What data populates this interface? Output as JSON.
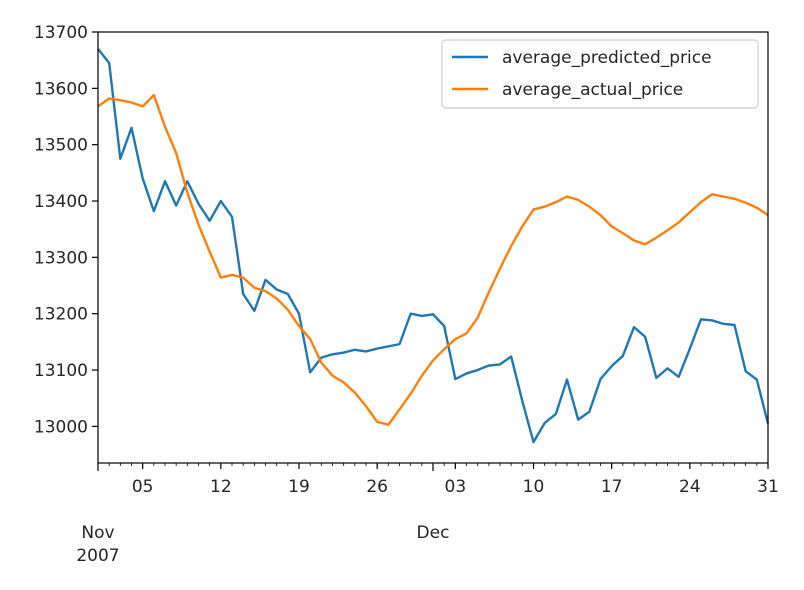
{
  "chart_data": {
    "type": "line",
    "title": "",
    "xlabel": "",
    "ylabel": "",
    "x_start": "2007-11-01",
    "x_end": "2007-12-31",
    "ylim": [
      12935,
      13700
    ],
    "grid": false,
    "legend_position": "top-right",
    "y_ticks": [
      13000,
      13100,
      13200,
      13300,
      13400,
      13500,
      13600,
      13700
    ],
    "y_tick_labels": [
      "13000",
      "13100",
      "13200",
      "13300",
      "13400",
      "13500",
      "13600",
      "13700"
    ],
    "x_ticks": [
      {
        "date": "2007-11-05",
        "label": "05"
      },
      {
        "date": "2007-11-12",
        "label": "12"
      },
      {
        "date": "2007-11-19",
        "label": "19"
      },
      {
        "date": "2007-11-26",
        "label": "26"
      },
      {
        "date": "2007-12-03",
        "label": "03"
      },
      {
        "date": "2007-12-10",
        "label": "10"
      },
      {
        "date": "2007-12-17",
        "label": "17"
      },
      {
        "date": "2007-12-24",
        "label": "24"
      },
      {
        "date": "2007-12-31",
        "label": "31"
      }
    ],
    "x_major_labels": [
      {
        "date": "2007-11-01",
        "label": "Nov",
        "sublabel": "2007"
      },
      {
        "date": "2007-12-01",
        "label": "Dec",
        "sublabel": ""
      }
    ],
    "series": [
      {
        "name": "average_predicted_price",
        "color": "#1f77b4",
        "points": [
          [
            "2007-11-01",
            13670
          ],
          [
            "2007-11-02",
            13645
          ],
          [
            "2007-11-03",
            13475
          ],
          [
            "2007-11-04",
            13530
          ],
          [
            "2007-11-05",
            13440
          ],
          [
            "2007-11-06",
            13382
          ],
          [
            "2007-11-07",
            13435
          ],
          [
            "2007-11-08",
            13392
          ],
          [
            "2007-11-09",
            13435
          ],
          [
            "2007-11-10",
            13395
          ],
          [
            "2007-11-11",
            13365
          ],
          [
            "2007-11-12",
            13400
          ],
          [
            "2007-11-13",
            13372
          ],
          [
            "2007-11-14",
            13235
          ],
          [
            "2007-11-15",
            13205
          ],
          [
            "2007-11-16",
            13260
          ],
          [
            "2007-11-17",
            13243
          ],
          [
            "2007-11-18",
            13235
          ],
          [
            "2007-11-19",
            13200
          ],
          [
            "2007-11-20",
            13096
          ],
          [
            "2007-11-21",
            13122
          ],
          [
            "2007-11-22",
            13128
          ],
          [
            "2007-11-23",
            13131
          ],
          [
            "2007-11-24",
            13136
          ],
          [
            "2007-11-25",
            13133
          ],
          [
            "2007-11-26",
            13138
          ],
          [
            "2007-11-27",
            13142
          ],
          [
            "2007-11-28",
            13146
          ],
          [
            "2007-11-29",
            13200
          ],
          [
            "2007-11-30",
            13196
          ],
          [
            "2007-12-01",
            13199
          ],
          [
            "2007-12-02",
            13178
          ],
          [
            "2007-12-03",
            13084
          ],
          [
            "2007-12-04",
            13094
          ],
          [
            "2007-12-05",
            13100
          ],
          [
            "2007-12-06",
            13108
          ],
          [
            "2007-12-07",
            13110
          ],
          [
            "2007-12-08",
            13124
          ],
          [
            "2007-12-09",
            13045
          ],
          [
            "2007-12-10",
            12972
          ],
          [
            "2007-12-11",
            13006
          ],
          [
            "2007-12-12",
            13022
          ],
          [
            "2007-12-13",
            13083
          ],
          [
            "2007-12-14",
            13012
          ],
          [
            "2007-12-15",
            13026
          ],
          [
            "2007-12-16",
            13084
          ],
          [
            "2007-12-17",
            13107
          ],
          [
            "2007-12-18",
            13125
          ],
          [
            "2007-12-19",
            13176
          ],
          [
            "2007-12-20",
            13159
          ],
          [
            "2007-12-21",
            13086
          ],
          [
            "2007-12-22",
            13103
          ],
          [
            "2007-12-23",
            13088
          ],
          [
            "2007-12-24",
            13138
          ],
          [
            "2007-12-25",
            13190
          ],
          [
            "2007-12-26",
            13188
          ],
          [
            "2007-12-27",
            13182
          ],
          [
            "2007-12-28",
            13180
          ],
          [
            "2007-12-29",
            13098
          ],
          [
            "2007-12-30",
            13083
          ],
          [
            "2007-12-31",
            13005
          ]
        ]
      },
      {
        "name": "average_actual_price",
        "color": "#ff7f0e",
        "points": [
          [
            "2007-11-01",
            13568
          ],
          [
            "2007-11-02",
            13582
          ],
          [
            "2007-11-03",
            13579
          ],
          [
            "2007-11-04",
            13575
          ],
          [
            "2007-11-05",
            13568
          ],
          [
            "2007-11-06",
            13588
          ],
          [
            "2007-11-07",
            13532
          ],
          [
            "2007-11-08",
            13485
          ],
          [
            "2007-11-09",
            13415
          ],
          [
            "2007-11-10",
            13358
          ],
          [
            "2007-11-11",
            13310
          ],
          [
            "2007-11-12",
            13264
          ],
          [
            "2007-11-13",
            13269
          ],
          [
            "2007-11-14",
            13264
          ],
          [
            "2007-11-15",
            13246
          ],
          [
            "2007-11-16",
            13240
          ],
          [
            "2007-11-17",
            13227
          ],
          [
            "2007-11-18",
            13207
          ],
          [
            "2007-11-19",
            13178
          ],
          [
            "2007-11-20",
            13155
          ],
          [
            "2007-11-21",
            13113
          ],
          [
            "2007-11-22",
            13090
          ],
          [
            "2007-11-23",
            13078
          ],
          [
            "2007-11-24",
            13060
          ],
          [
            "2007-11-25",
            13036
          ],
          [
            "2007-11-26",
            13008
          ],
          [
            "2007-11-27",
            13003
          ],
          [
            "2007-11-28",
            13030
          ],
          [
            "2007-11-29",
            13058
          ],
          [
            "2007-11-30",
            13090
          ],
          [
            "2007-12-01",
            13117
          ],
          [
            "2007-12-02",
            13137
          ],
          [
            "2007-12-03",
            13155
          ],
          [
            "2007-12-04",
            13165
          ],
          [
            "2007-12-05",
            13193
          ],
          [
            "2007-12-06",
            13238
          ],
          [
            "2007-12-07",
            13280
          ],
          [
            "2007-12-08",
            13320
          ],
          [
            "2007-12-09",
            13355
          ],
          [
            "2007-12-10",
            13385
          ],
          [
            "2007-12-11",
            13390
          ],
          [
            "2007-12-12",
            13398
          ],
          [
            "2007-12-13",
            13408
          ],
          [
            "2007-12-14",
            13402
          ],
          [
            "2007-12-15",
            13390
          ],
          [
            "2007-12-16",
            13375
          ],
          [
            "2007-12-17",
            13355
          ],
          [
            "2007-12-18",
            13343
          ],
          [
            "2007-12-19",
            13330
          ],
          [
            "2007-12-20",
            13323
          ],
          [
            "2007-12-21",
            13335
          ],
          [
            "2007-12-22",
            13348
          ],
          [
            "2007-12-23",
            13362
          ],
          [
            "2007-12-24",
            13380
          ],
          [
            "2007-12-25",
            13398
          ],
          [
            "2007-12-26",
            13412
          ],
          [
            "2007-12-27",
            13408
          ],
          [
            "2007-12-28",
            13404
          ],
          [
            "2007-12-29",
            13397
          ],
          [
            "2007-12-30",
            13388
          ],
          [
            "2007-12-31",
            13375
          ]
        ]
      }
    ]
  }
}
